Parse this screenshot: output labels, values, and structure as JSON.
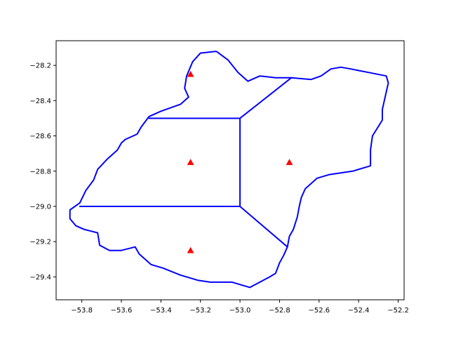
{
  "chart_data": {
    "type": "map-plot",
    "title": "",
    "xlabel": "",
    "ylabel": "",
    "xlim": [
      -53.93,
      -52.17
    ],
    "ylim": [
      -29.53,
      -28.06
    ],
    "grid": false,
    "x_ticks": [
      -53.8,
      -53.6,
      -53.4,
      -53.2,
      -53.0,
      -52.8,
      -52.6,
      -52.4,
      -52.2
    ],
    "x_tick_labels": [
      "−53.8",
      "−53.6",
      "−53.4",
      "−53.2",
      "−53.0",
      "−52.8",
      "−52.6",
      "−52.4",
      "−52.2"
    ],
    "y_ticks": [
      -28.2,
      -28.4,
      -28.6,
      -28.8,
      -29.0,
      -29.2,
      -29.4
    ],
    "y_tick_labels": [
      "−28.2",
      "−28.4",
      "−28.6",
      "−28.8",
      "−29.0",
      "−29.2",
      "−29.4"
    ],
    "colors": {
      "line": "#0000ff",
      "marker": "#ff0000",
      "axis": "#000000"
    },
    "outline": [
      [
        -53.12,
        -28.12
      ],
      [
        -53.2,
        -28.13
      ],
      [
        -53.24,
        -28.18
      ],
      [
        -53.27,
        -28.26
      ],
      [
        -53.28,
        -28.33
      ],
      [
        -53.26,
        -28.38
      ],
      [
        -53.3,
        -28.42
      ],
      [
        -53.4,
        -28.46
      ],
      [
        -53.46,
        -28.49
      ],
      [
        -53.5,
        -28.55
      ],
      [
        -53.52,
        -28.59
      ],
      [
        -53.58,
        -28.62
      ],
      [
        -53.6,
        -28.64
      ],
      [
        -53.62,
        -28.68
      ],
      [
        -53.67,
        -28.73
      ],
      [
        -53.72,
        -28.79
      ],
      [
        -53.74,
        -28.85
      ],
      [
        -53.78,
        -28.91
      ],
      [
        -53.81,
        -28.98
      ],
      [
        -53.86,
        -29.02
      ],
      [
        -53.86,
        -29.07
      ],
      [
        -53.83,
        -29.11
      ],
      [
        -53.79,
        -29.13
      ],
      [
        -53.72,
        -29.15
      ],
      [
        -53.71,
        -29.22
      ],
      [
        -53.66,
        -29.25
      ],
      [
        -53.6,
        -29.25
      ],
      [
        -53.53,
        -29.23
      ],
      [
        -53.51,
        -29.27
      ],
      [
        -53.45,
        -29.33
      ],
      [
        -53.39,
        -29.35
      ],
      [
        -53.3,
        -29.39
      ],
      [
        -53.21,
        -29.42
      ],
      [
        -53.15,
        -29.43
      ],
      [
        -53.04,
        -29.43
      ],
      [
        -52.95,
        -29.46
      ],
      [
        -52.85,
        -29.4
      ],
      [
        -52.82,
        -29.38
      ],
      [
        -52.8,
        -29.32
      ],
      [
        -52.78,
        -29.28
      ],
      [
        -52.76,
        -29.23
      ],
      [
        -52.75,
        -29.17
      ],
      [
        -52.73,
        -29.13
      ],
      [
        -52.71,
        -29.06
      ],
      [
        -52.7,
        -29.0
      ],
      [
        -52.69,
        -28.95
      ],
      [
        -52.67,
        -28.9
      ],
      [
        -52.61,
        -28.84
      ],
      [
        -52.55,
        -28.82
      ],
      [
        -52.43,
        -28.8
      ],
      [
        -52.34,
        -28.77
      ],
      [
        -52.34,
        -28.68
      ],
      [
        -52.33,
        -28.6
      ],
      [
        -52.28,
        -28.51
      ],
      [
        -52.28,
        -28.45
      ],
      [
        -52.27,
        -28.4
      ],
      [
        -52.25,
        -28.3
      ],
      [
        -52.26,
        -28.26
      ],
      [
        -52.35,
        -28.24
      ],
      [
        -52.44,
        -28.22
      ],
      [
        -52.49,
        -28.21
      ],
      [
        -52.54,
        -28.22
      ],
      [
        -52.59,
        -28.26
      ],
      [
        -52.64,
        -28.28
      ],
      [
        -52.74,
        -28.27
      ],
      [
        -52.82,
        -28.27
      ],
      [
        -52.9,
        -28.26
      ],
      [
        -52.96,
        -28.29
      ],
      [
        -53.01,
        -28.24
      ],
      [
        -53.06,
        -28.17
      ],
      [
        -53.12,
        -28.12
      ]
    ],
    "internal_lines": [
      [
        [
          -53.46,
          -28.5
        ],
        [
          -53.0,
          -28.5
        ]
      ],
      [
        [
          -53.0,
          -28.5
        ],
        [
          -53.0,
          -29.0
        ]
      ],
      [
        [
          -53.0,
          -28.5
        ],
        [
          -52.74,
          -28.27
        ]
      ],
      [
        [
          -53.81,
          -29.0
        ],
        [
          -53.0,
          -29.0
        ]
      ],
      [
        [
          -53.0,
          -29.0
        ],
        [
          -52.76,
          -29.23
        ]
      ]
    ],
    "points": [
      [
        -53.25,
        -28.25
      ],
      [
        -53.25,
        -28.75
      ],
      [
        -52.75,
        -28.75
      ],
      [
        -53.25,
        -29.25
      ]
    ]
  }
}
